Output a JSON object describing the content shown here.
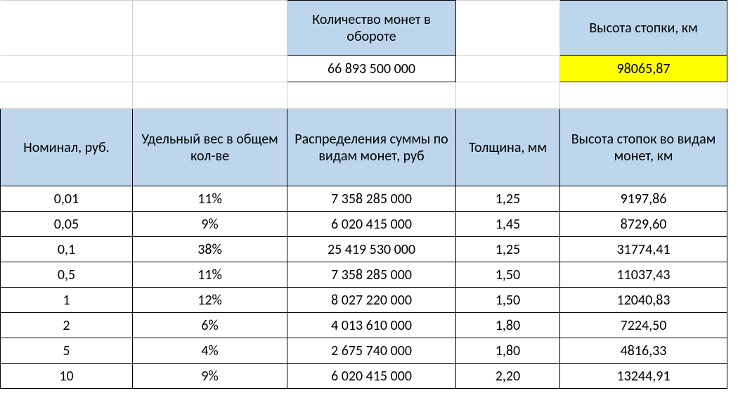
{
  "top": {
    "coins_label": "Количество монет в обороте",
    "coins_value": "66 893 500 000",
    "stack_label": "Высота стопки, км",
    "stack_value": "98065,87"
  },
  "columns": [
    "Номинал, руб.",
    "Удельный вес в общем кол-ве",
    "Распределения суммы по видам монет, руб",
    "Толщина, мм",
    "Высота стопок во видам монет, км"
  ],
  "rows": [
    [
      "0,01",
      "11%",
      "7 358 285 000",
      "1,25",
      "9197,86"
    ],
    [
      "0,05",
      "9%",
      "6 020 415 000",
      "1,45",
      "8729,60"
    ],
    [
      "0,1",
      "38%",
      "25 419 530 000",
      "1,25",
      "31774,41"
    ],
    [
      "0,5",
      "11%",
      "7 358 285 000",
      "1,50",
      "11037,43"
    ],
    [
      "1",
      "12%",
      "8 027 220 000",
      "1,50",
      "12040,83"
    ],
    [
      "2",
      "6%",
      "4 013 610 000",
      "1,80",
      "7224,50"
    ],
    [
      "5",
      "4%",
      "2 675 740 000",
      "1,80",
      "4816,33"
    ],
    [
      "10",
      "9%",
      "6 020 415 000",
      "2,20",
      "13244,91"
    ]
  ],
  "style": {
    "header_bg": "#bdd6ee",
    "highlight_bg": "#ffff00",
    "border_color": "#000000",
    "grid_color": "#d0d0d0",
    "font_family": "Calibri",
    "font_size_pt": 15
  }
}
